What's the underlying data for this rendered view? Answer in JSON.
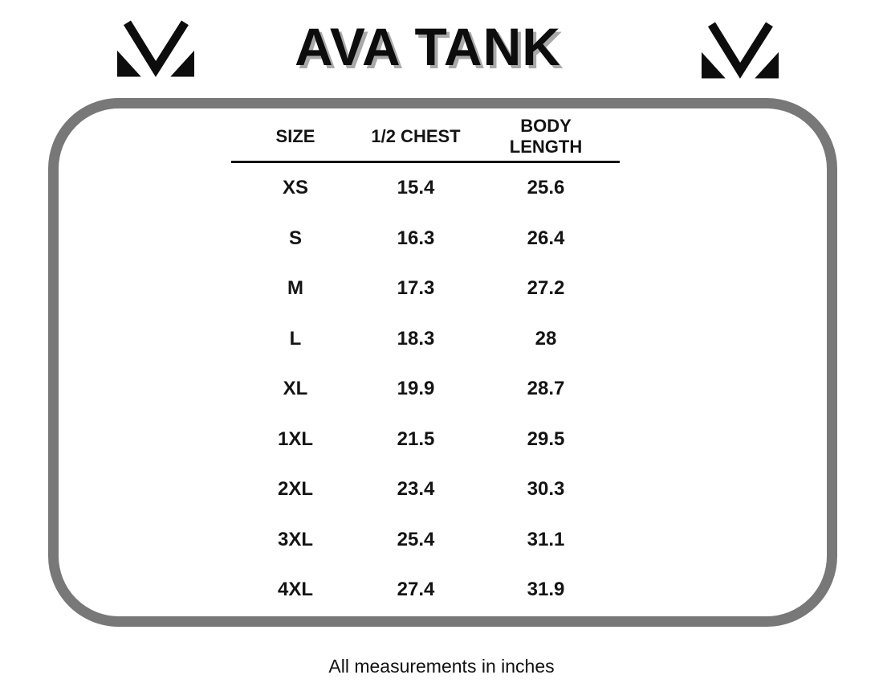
{
  "header": {
    "title": "AVA TANK",
    "logo_left": "mv-monogram",
    "logo_right": "mv-monogram"
  },
  "table": {
    "columns": [
      "SIZE",
      "1/2 CHEST",
      "BODY LENGTH"
    ],
    "rows": [
      {
        "size": "XS",
        "half_chest": "15.4",
        "body_length": "25.6"
      },
      {
        "size": "S",
        "half_chest": "16.3",
        "body_length": "26.4"
      },
      {
        "size": "M",
        "half_chest": "17.3",
        "body_length": "27.2"
      },
      {
        "size": "L",
        "half_chest": "18.3",
        "body_length": "28"
      },
      {
        "size": "XL",
        "half_chest": "19.9",
        "body_length": "28.7"
      },
      {
        "size": "1XL",
        "half_chest": "21.5",
        "body_length": "29.5"
      },
      {
        "size": "2XL",
        "half_chest": "23.4",
        "body_length": "30.3"
      },
      {
        "size": "3XL",
        "half_chest": "25.4",
        "body_length": "31.1"
      },
      {
        "size": "4XL",
        "half_chest": "27.4",
        "body_length": "31.9"
      }
    ]
  },
  "footer": {
    "note": "All measurements in inches"
  },
  "colors": {
    "border_gray": "#787878",
    "text_black": "#141414",
    "title_shadow_gray": "#a9a9a9"
  },
  "chart_data": {
    "type": "table",
    "title": "AVA TANK",
    "columns": [
      "SIZE",
      "1/2 CHEST",
      "BODY LENGTH"
    ],
    "rows": [
      [
        "XS",
        15.4,
        25.6
      ],
      [
        "S",
        16.3,
        26.4
      ],
      [
        "M",
        17.3,
        27.2
      ],
      [
        "L",
        18.3,
        28
      ],
      [
        "XL",
        19.9,
        28.7
      ],
      [
        "1XL",
        21.5,
        29.5
      ],
      [
        "2XL",
        23.4,
        30.3
      ],
      [
        "3XL",
        25.4,
        31.1
      ],
      [
        "4XL",
        27.4,
        31.9
      ]
    ],
    "note": "All measurements in inches"
  }
}
